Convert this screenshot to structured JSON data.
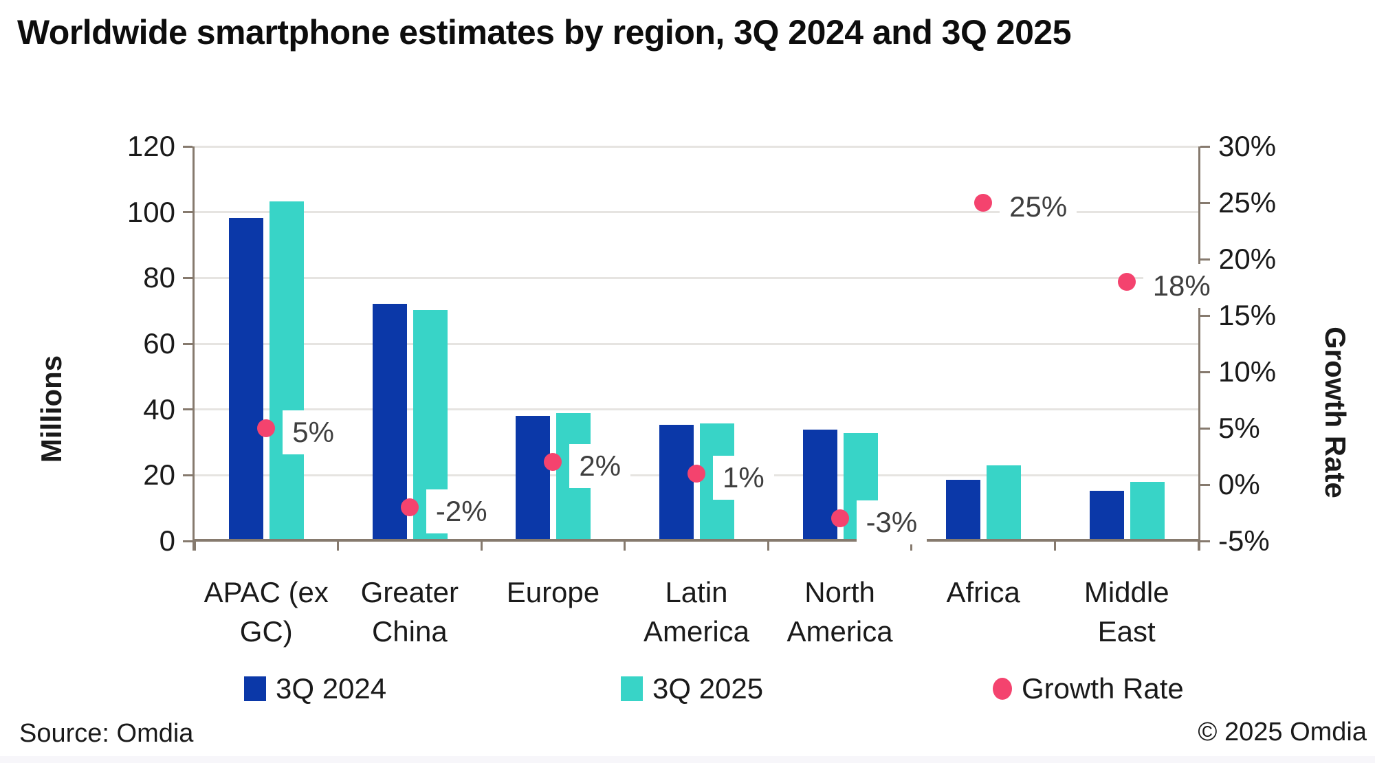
{
  "title": "Worldwide smartphone estimates by region, 3Q 2024 and 3Q 2025",
  "footer": {
    "source": "Source: Omdia",
    "copyright": "© 2025 Omdia"
  },
  "legend": {
    "items": [
      {
        "label": "3Q 2024",
        "marker": "square",
        "color": "#0B38A8"
      },
      {
        "label": "3Q 2025",
        "marker": "square",
        "color": "#38D4C7"
      },
      {
        "label": "Growth Rate",
        "marker": "circle",
        "color": "#F4436E"
      }
    ]
  },
  "chart_data": {
    "type": "bar+scatter",
    "title": "Worldwide smartphone estimates by region, 3Q 2024 and 3Q 2025",
    "categories": [
      "APAC (ex GC)",
      "Greater China",
      "Europe",
      "Latin America",
      "North America",
      "Africa",
      "Middle East"
    ],
    "category_lines": [
      [
        "APAC (ex",
        "GC)"
      ],
      [
        "Greater",
        "China"
      ],
      [
        "Europe"
      ],
      [
        "Latin",
        "America"
      ],
      [
        "North",
        "America"
      ],
      [
        "Africa"
      ],
      [
        "Middle",
        "East"
      ]
    ],
    "series": [
      {
        "name": "3Q 2024",
        "type": "bar",
        "axis": "left",
        "color": "#0B38A8",
        "values": [
          98.2,
          72.1,
          38.1,
          35.3,
          33.9,
          18.6,
          15.3
        ]
      },
      {
        "name": "3Q 2025",
        "type": "bar",
        "axis": "left",
        "color": "#38D4C7",
        "values": [
          103.3,
          70.3,
          38.9,
          35.7,
          32.8,
          23.0,
          17.9
        ]
      },
      {
        "name": "Growth Rate",
        "type": "scatter",
        "axis": "right",
        "color": "#F4436E",
        "values": [
          5,
          -2,
          2,
          1,
          -3,
          25,
          18
        ],
        "labels": [
          "5%",
          "-2%",
          "2%",
          "1%",
          "-3%",
          "25%",
          "18%"
        ]
      }
    ],
    "left_axis": {
      "title": "Millions",
      "min": 0,
      "max": 120,
      "step": 20,
      "tick_labels": [
        "0",
        "20",
        "40",
        "60",
        "80",
        "100",
        "120"
      ]
    },
    "right_axis": {
      "title": "Growth Rate",
      "min": -5,
      "max": 30,
      "step": 5,
      "tick_labels": [
        "-5%",
        "0%",
        "5%",
        "10%",
        "15%",
        "20%",
        "25%",
        "30%"
      ]
    },
    "grid": true,
    "legend_position": "bottom",
    "colors": {
      "bar_2024": "#0B38A8",
      "bar_2025": "#38D4C7",
      "growth_dot": "#F4436E",
      "axis_line": "#867A6E",
      "gridline": "#E6E4E1",
      "data_label_text": "#3F3F3F"
    }
  }
}
